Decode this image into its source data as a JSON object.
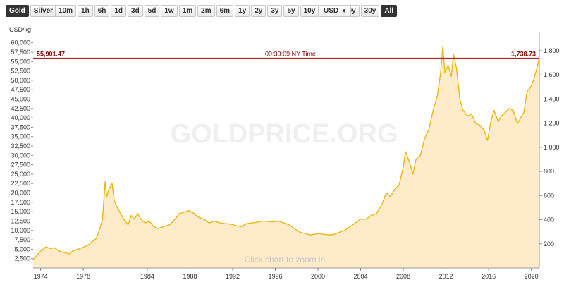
{
  "toolbar": {
    "metals": [
      "Gold",
      "Silver"
    ],
    "active_metal": "Gold",
    "ranges": [
      "10m",
      "1h",
      "6h",
      "1d",
      "3d",
      "5d",
      "1w",
      "1m",
      "2m",
      "6m",
      "1y",
      "2y",
      "3y",
      "5y",
      "10y",
      "15y",
      "20y",
      "30y",
      "All"
    ],
    "active_range": "All",
    "currency": "USD",
    "caret": "▼"
  },
  "colors": {
    "line": "#f0b000",
    "fill": "#fdebc9",
    "crosshair": "#b22222",
    "watermark": "#f0f0f0"
  },
  "chart_data": {
    "type": "area",
    "unit_label": "USD/kg",
    "watermark": "GOLDPRICE.ORG",
    "hint": "Click chart to zoom in",
    "crosshair": {
      "left_value": "55,901.47",
      "time": "09:39:09 NY Time",
      "right_value": "1,738.73"
    },
    "left_axis": {
      "ticks": [
        2500,
        5000,
        7500,
        10000,
        12500,
        15000,
        17500,
        20000,
        22500,
        25000,
        27500,
        30000,
        32500,
        35000,
        37500,
        40000,
        42500,
        45000,
        47500,
        50000,
        52500,
        55000,
        57500,
        60000
      ],
      "tick_labels": [
        "2,500",
        "5,000",
        "7,500",
        "10,000",
        "12,500",
        "15,000",
        "17,500",
        "20,000",
        "22,500",
        "25,000",
        "27,500",
        "30,000",
        "32,500",
        "35,000",
        "37,500",
        "40,000",
        "42,500",
        "45,000",
        "47,500",
        "50,000",
        "52,500",
        "55,000",
        "57,500",
        "60,000"
      ],
      "range": [
        0,
        62000
      ]
    },
    "right_axis": {
      "ticks": [
        200,
        400,
        600,
        800,
        1000,
        1200,
        1400,
        1600,
        1800
      ],
      "tick_labels": [
        "200",
        "400",
        "600",
        "800",
        "1,000",
        "1,200",
        "1,400",
        "1,600",
        "1,800"
      ],
      "range": [
        0,
        1928.5
      ]
    },
    "x_axis": {
      "ticks": [
        1974,
        1978,
        1984,
        1988,
        1992,
        1996,
        2000,
        2004,
        2008,
        2012,
        2016,
        2020
      ],
      "tick_labels": [
        "1974",
        "1978",
        "1984",
        "1988",
        "1992",
        "1996",
        "2000",
        "2004",
        "2008",
        "2012",
        "2016",
        "2020"
      ],
      "range": [
        1973.3,
        2020.75
      ]
    },
    "series": [
      {
        "x": [
          1973.3,
          1973.6,
          1974.0,
          1974.5,
          1974.9,
          1975.3,
          1975.7,
          1976.0,
          1976.4,
          1976.7,
          1977.0,
          1977.5,
          1978.0,
          1978.4,
          1978.8,
          1979.2,
          1979.5,
          1979.8,
          1980.05,
          1980.2,
          1980.4,
          1980.7,
          1980.9,
          1981.2,
          1981.5,
          1981.8,
          1982.2,
          1982.5,
          1982.8,
          1983.1,
          1983.4,
          1983.8,
          1984.2,
          1984.6,
          1985.0,
          1985.3,
          1985.7,
          1986.1,
          1986.6,
          1987.0,
          1987.4,
          1987.9,
          1988.4,
          1988.8,
          1989.3,
          1989.8,
          1990.3,
          1990.8,
          1991.3,
          1991.8,
          1992.3,
          1992.8,
          1993.3,
          1993.8,
          1994.3,
          1994.8,
          1995.3,
          1995.8,
          1996.3,
          1996.8,
          1997.3,
          1997.8,
          1998.3,
          1998.8,
          1999.3,
          1999.7,
          2000.0,
          2000.5,
          2001.0,
          2001.5,
          2002.0,
          2002.5,
          2003.0,
          2003.5,
          2004.0,
          2004.5,
          2005.0,
          2005.5,
          2006.0,
          2006.4,
          2006.8,
          2007.2,
          2007.6,
          2008.0,
          2008.2,
          2008.6,
          2008.9,
          2009.2,
          2009.6,
          2010.0,
          2010.4,
          2010.8,
          2011.2,
          2011.5,
          2011.7,
          2011.9,
          2012.2,
          2012.5,
          2012.7,
          2013.0,
          2013.3,
          2013.6,
          2014.0,
          2014.4,
          2014.8,
          2015.2,
          2015.6,
          2015.9,
          2016.2,
          2016.5,
          2016.9,
          2017.2,
          2017.6,
          2017.9,
          2018.3,
          2018.7,
          2019.0,
          2019.3,
          2019.6,
          2019.9,
          2020.2,
          2020.5,
          2020.75
        ],
        "values": [
          2300,
          3200,
          4500,
          5600,
          5200,
          5400,
          4500,
          4300,
          4000,
          3700,
          4500,
          5000,
          5500,
          6000,
          6900,
          7800,
          10000,
          13000,
          23000,
          19000,
          21000,
          22500,
          18000,
          16000,
          14500,
          13000,
          11500,
          14000,
          13000,
          14500,
          13000,
          12000,
          12500,
          11000,
          10500,
          10800,
          11200,
          11500,
          13000,
          14500,
          14800,
          15300,
          14500,
          13500,
          13000,
          12000,
          12500,
          12000,
          11800,
          11700,
          11300,
          11000,
          11800,
          12000,
          12200,
          12500,
          12400,
          12300,
          12500,
          12000,
          11500,
          10500,
          9500,
          9200,
          8800,
          9000,
          9200,
          9000,
          8800,
          8900,
          9500,
          10000,
          11000,
          12000,
          13000,
          13000,
          14000,
          14500,
          17000,
          20000,
          19000,
          21000,
          22000,
          27000,
          31000,
          28000,
          25000,
          29000,
          30000,
          34500,
          37000,
          42000,
          46000,
          52000,
          59000,
          52000,
          54000,
          51000,
          57000,
          53000,
          45000,
          42000,
          40500,
          41000,
          38500,
          38000,
          36500,
          34000,
          39000,
          42000,
          39000,
          40500,
          41500,
          42500,
          42000,
          38500,
          40000,
          41500,
          47000,
          48000,
          50000,
          53000,
          55900
        ]
      }
    ]
  }
}
